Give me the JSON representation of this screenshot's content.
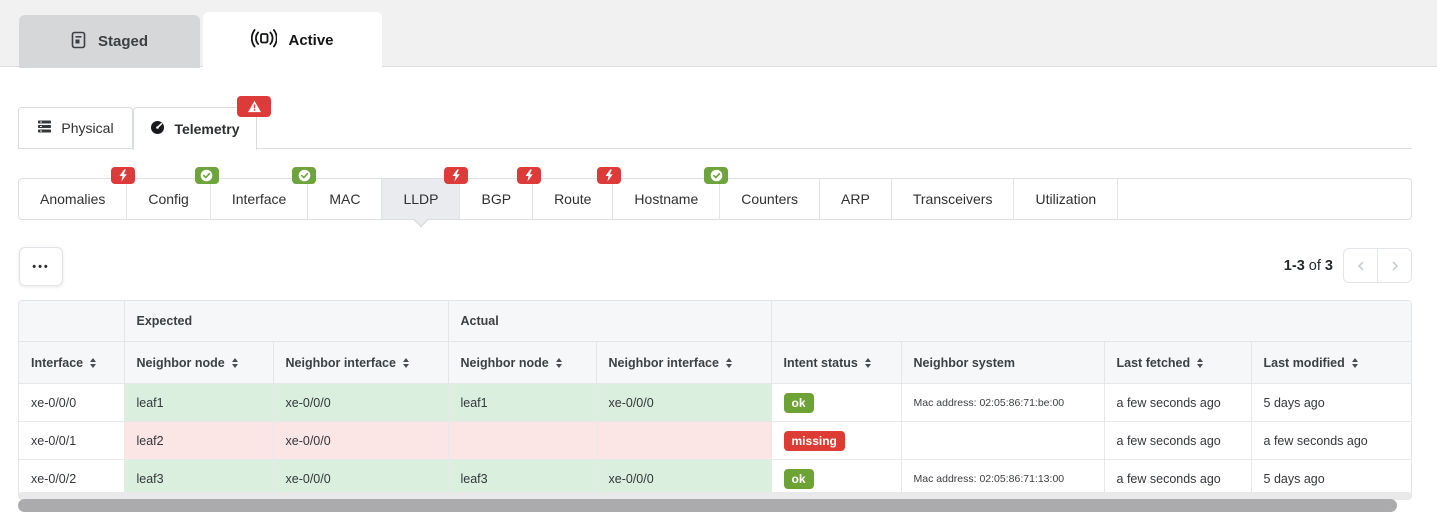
{
  "colors": {
    "error": "#dc3b39",
    "success": "#6da43c",
    "badge_ok": "#6da335",
    "badge_missing": "#dc3c33",
    "row_success_bg": "#daefdd",
    "row_danger_bg": "#fbe5e5"
  },
  "icons": {
    "staged_tab": "file-icon",
    "active_tab": "broadcast-icon",
    "physical_tab": "rack-icon",
    "telemetry_tab": "gauge-icon",
    "telemetry_alert": "warning-triangle-icon",
    "error_badge": "lightning-bolt-icon",
    "ok_badge": "check-circle-icon",
    "more": "ellipsis-icon",
    "prev": "chevron-left-icon",
    "next": "chevron-right-icon",
    "sort": "sort-arrows-icon"
  },
  "header": {
    "tabs": [
      {
        "label": "Staged"
      },
      {
        "label": "Active"
      }
    ]
  },
  "view_tabs": [
    {
      "label": "Physical"
    },
    {
      "label": "Telemetry"
    }
  ],
  "service_tabs": [
    {
      "label": "Anomalies",
      "badge": "error",
      "active": false
    },
    {
      "label": "Config",
      "badge": "ok",
      "active": false
    },
    {
      "label": "Interface",
      "badge": "ok",
      "active": false
    },
    {
      "label": "MAC",
      "badge": null,
      "active": false
    },
    {
      "label": "LLDP",
      "badge": "error",
      "active": true
    },
    {
      "label": "BGP",
      "badge": "error",
      "active": false
    },
    {
      "label": "Route",
      "badge": "error",
      "active": false
    },
    {
      "label": "Hostname",
      "badge": "ok",
      "active": false
    },
    {
      "label": "Counters",
      "badge": null,
      "active": false
    },
    {
      "label": "ARP",
      "badge": null,
      "active": false
    },
    {
      "label": "Transceivers",
      "badge": null,
      "active": false
    },
    {
      "label": "Utilization",
      "badge": null,
      "active": false
    }
  ],
  "toolbar": {
    "more_label": "•••",
    "pagination": {
      "range": "1-3",
      "of": "of",
      "total": "3"
    }
  },
  "table": {
    "groups": [
      "",
      "Expected",
      "Actual",
      ""
    ],
    "columns": [
      {
        "label": "Interface",
        "sortable": true
      },
      {
        "label": "Neighbor node",
        "sortable": true
      },
      {
        "label": "Neighbor interface",
        "sortable": true
      },
      {
        "label": "Neighbor node",
        "sortable": true
      },
      {
        "label": "Neighbor interface",
        "sortable": true
      },
      {
        "label": "Intent status",
        "sortable": true
      },
      {
        "label": "Neighbor system",
        "sortable": false
      },
      {
        "label": "Last fetched",
        "sortable": true
      },
      {
        "label": "Last modified",
        "sortable": true
      }
    ],
    "rows": [
      {
        "interface": "xe-0/0/0",
        "expected_node": "leaf1",
        "expected_interface": "xe-0/0/0",
        "actual_node": "leaf1",
        "actual_interface": "xe-0/0/0",
        "status": "ok",
        "neighbor_system": "Mac address: 02:05:86:71:be:00",
        "last_fetched": "a few seconds ago",
        "last_modified": "5 days ago"
      },
      {
        "interface": "xe-0/0/1",
        "expected_node": "leaf2",
        "expected_interface": "xe-0/0/0",
        "actual_node": "",
        "actual_interface": "",
        "status": "missing",
        "neighbor_system": "",
        "last_fetched": "a few seconds ago",
        "last_modified": "a few seconds ago"
      },
      {
        "interface": "xe-0/0/2",
        "expected_node": "leaf3",
        "expected_interface": "xe-0/0/0",
        "actual_node": "leaf3",
        "actual_interface": "xe-0/0/0",
        "status": "ok",
        "neighbor_system": "Mac address: 02:05:86:71:13:00",
        "last_fetched": "a few seconds ago",
        "last_modified": "5 days ago"
      }
    ]
  }
}
